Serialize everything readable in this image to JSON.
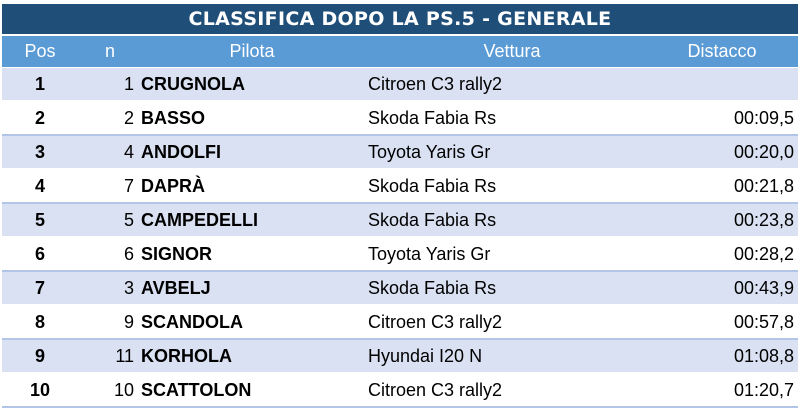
{
  "title": "CLASSIFICA DOPO LA PS.5 - GENERALE",
  "headers": {
    "pos": "Pos",
    "n": "n",
    "pilota": "Pilota",
    "vettura": "Vettura",
    "distacco": "Distacco"
  },
  "rows": [
    {
      "pos": "1",
      "n": "1",
      "pilota": "CRUGNOLA",
      "vettura": "Citroen C3 rally2",
      "distacco": ""
    },
    {
      "pos": "2",
      "n": "2",
      "pilota": "BASSO",
      "vettura": "Skoda Fabia Rs",
      "distacco": "00:09,5"
    },
    {
      "pos": "3",
      "n": "4",
      "pilota": "ANDOLFI",
      "vettura": "Toyota Yaris Gr",
      "distacco": "00:20,0"
    },
    {
      "pos": "4",
      "n": "7",
      "pilota": "DAPRÀ",
      "vettura": "Skoda Fabia Rs",
      "distacco": "00:21,8"
    },
    {
      "pos": "5",
      "n": "5",
      "pilota": "CAMPEDELLI",
      "vettura": "Skoda Fabia Rs",
      "distacco": "00:23,8"
    },
    {
      "pos": "6",
      "n": "6",
      "pilota": "SIGNOR",
      "vettura": "Toyota Yaris Gr",
      "distacco": "00:28,2"
    },
    {
      "pos": "7",
      "n": "3",
      "pilota": "AVBELJ",
      "vettura": "Skoda Fabia Rs",
      "distacco": "00:43,9"
    },
    {
      "pos": "8",
      "n": "9",
      "pilota": "SCANDOLA",
      "vettura": "Citroen C3 rally2",
      "distacco": "00:57,8"
    },
    {
      "pos": "9",
      "n": "11",
      "pilota": "KORHOLA",
      "vettura": "Hyundai I20 N",
      "distacco": "01:08,8"
    },
    {
      "pos": "10",
      "n": "10",
      "pilota": "SCATTOLON",
      "vettura": "Citroen C3 rally2",
      "distacco": "01:20,7"
    }
  ],
  "colors": {
    "title_bg": "#1f4e79",
    "header_bg": "#5b9bd5",
    "band_bg": "#d9e1f2"
  }
}
